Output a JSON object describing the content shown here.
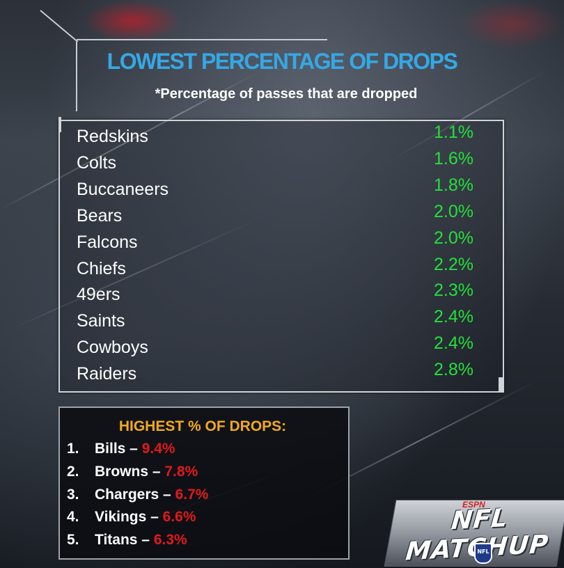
{
  "chart_data": {
    "type": "table",
    "title": "LOWEST PERCENTAGE OF DROPS",
    "subtitle": "*Percentage of passes that are dropped",
    "rows": [
      {
        "team": "Redskins",
        "value": "1.1%"
      },
      {
        "team": "Colts",
        "value": "1.6%"
      },
      {
        "team": "Buccaneers",
        "value": "1.8%"
      },
      {
        "team": "Bears",
        "value": "2.0%"
      },
      {
        "team": "Falcons",
        "value": "2.0%"
      },
      {
        "team": "Chiefs",
        "value": "2.2%"
      },
      {
        "team": "49ers",
        "value": "2.3%"
      },
      {
        "team": "Saints",
        "value": "2.4%"
      },
      {
        "team": "Cowboys",
        "value": "2.4%"
      },
      {
        "team": "Raiders",
        "value": "2.8%"
      }
    ],
    "highest": {
      "title": "HIGHEST % OF DROPS:",
      "items": [
        {
          "rank": "1.",
          "team": "Bills –",
          "value": "9.4%"
        },
        {
          "rank": "2.",
          "team": "Browns –",
          "value": "7.8%"
        },
        {
          "rank": "3.",
          "team": "Chargers –",
          "value": "6.7%"
        },
        {
          "rank": "4.",
          "team": "Vikings –",
          "value": "6.6%"
        },
        {
          "rank": "5.",
          "team": "Titans –",
          "value": "6.3%"
        }
      ]
    }
  },
  "branding": {
    "network": "ESPN",
    "show": "NFL MATCHUP",
    "league_badge": "NFL"
  },
  "colors": {
    "title": "#35a8e6",
    "lowest_values": "#23e03a",
    "highest_title": "#f4a91c",
    "highest_values": "#e11a1a"
  }
}
